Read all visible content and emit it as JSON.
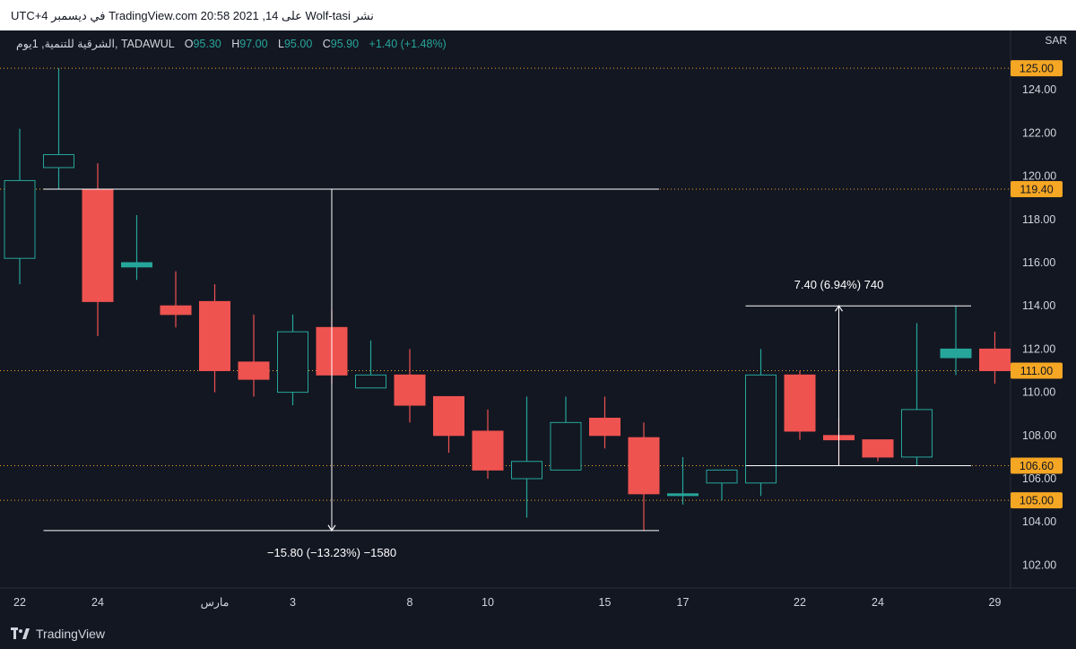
{
  "header": {
    "text": "نشر Wolf-tasi على TradingView.com 20:58 2021 ,14 في ديسمبر UTC+4"
  },
  "legend": {
    "symbol": "الشرقية للتنمية, 1يوم, TADAWUL",
    "o_label": "O",
    "o_value": "95.30",
    "h_label": "H",
    "h_value": "97.00",
    "l_label": "L",
    "l_value": "95.00",
    "c_label": "C",
    "c_value": "95.90",
    "change": "+1.40 (+1.48%)"
  },
  "currency": "SAR",
  "footer": {
    "brand": "TradingView"
  },
  "colors": {
    "up": "#26a69a",
    "down": "#ef5350",
    "background": "#131722",
    "text": "#d1d4dc",
    "price_tag": "#f5a623",
    "measure": "#ffffff"
  },
  "chart_data": {
    "type": "candlestick",
    "ylim": [
      100.5,
      126
    ],
    "yticks": [
      "102.00",
      "104.00",
      "106.00",
      "108.00",
      "110.00",
      "112.00",
      "114.00",
      "116.00",
      "118.00",
      "120.00",
      "122.00",
      "124.00"
    ],
    "xtick_labels": [
      {
        "label": "22",
        "index": 0
      },
      {
        "label": "24",
        "index": 2
      },
      {
        "label": "مارس",
        "index": 5
      },
      {
        "label": "3",
        "index": 7
      },
      {
        "label": "8",
        "index": 10
      },
      {
        "label": "10",
        "index": 12
      },
      {
        "label": "15",
        "index": 15
      },
      {
        "label": "17",
        "index": 17
      },
      {
        "label": "22",
        "index": 20
      },
      {
        "label": "24",
        "index": 22
      },
      {
        "label": "29",
        "index": 25
      }
    ],
    "candles": [
      {
        "o": 116.2,
        "h": 122.2,
        "l": 115.0,
        "c": 119.8
      },
      {
        "o": 120.4,
        "h": 125.0,
        "l": 119.4,
        "c": 121.0
      },
      {
        "o": 119.4,
        "h": 120.6,
        "l": 112.6,
        "c": 114.2
      },
      {
        "o": 115.8,
        "h": 118.2,
        "l": 115.2,
        "c": 116.0
      },
      {
        "o": 114.0,
        "h": 115.6,
        "l": 113.0,
        "c": 113.6
      },
      {
        "o": 114.2,
        "h": 115.0,
        "l": 110.0,
        "c": 111.0
      },
      {
        "o": 111.4,
        "h": 113.6,
        "l": 109.8,
        "c": 110.6
      },
      {
        "o": 110.0,
        "h": 113.6,
        "l": 109.4,
        "c": 112.8
      },
      {
        "o": 113.0,
        "h": 113.8,
        "l": 110.4,
        "c": 110.8
      },
      {
        "o": 110.2,
        "h": 112.4,
        "l": 110.2,
        "c": 110.8
      },
      {
        "o": 110.8,
        "h": 112.0,
        "l": 108.6,
        "c": 109.4
      },
      {
        "o": 109.8,
        "h": 109.8,
        "l": 107.2,
        "c": 108.0
      },
      {
        "o": 108.2,
        "h": 109.2,
        "l": 106.0,
        "c": 106.4
      },
      {
        "o": 106.0,
        "h": 109.8,
        "l": 104.2,
        "c": 106.8
      },
      {
        "o": 106.4,
        "h": 109.8,
        "l": 106.4,
        "c": 108.6
      },
      {
        "o": 108.8,
        "h": 109.8,
        "l": 107.4,
        "c": 108.0
      },
      {
        "o": 107.9,
        "h": 108.6,
        "l": 103.6,
        "c": 105.3
      },
      {
        "o": 105.3,
        "h": 107.0,
        "l": 104.8,
        "c": 105.3
      },
      {
        "o": 105.8,
        "h": 106.4,
        "l": 105.0,
        "c": 106.4
      },
      {
        "o": 105.8,
        "h": 112.0,
        "l": 105.2,
        "c": 110.8
      },
      {
        "o": 110.8,
        "h": 111.0,
        "l": 107.8,
        "c": 108.2
      },
      {
        "o": 108.0,
        "h": 108.8,
        "l": 106.6,
        "c": 107.8
      },
      {
        "o": 107.8,
        "h": 107.8,
        "l": 106.8,
        "c": 107.0
      },
      {
        "o": 107.0,
        "h": 113.2,
        "l": 106.6,
        "c": 109.2
      },
      {
        "o": 111.6,
        "h": 114.0,
        "l": 110.8,
        "c": 112.0
      },
      {
        "o": 112.0,
        "h": 112.8,
        "l": 110.4,
        "c": 111.0
      }
    ],
    "price_tags": [
      {
        "value": 125.0,
        "label": "125.00"
      },
      {
        "value": 119.4,
        "label": "119.40"
      },
      {
        "value": 111.0,
        "label": "111.00"
      },
      {
        "value": 106.6,
        "label": "106.60"
      },
      {
        "value": 105.0,
        "label": "105.00"
      }
    ],
    "measurements": [
      {
        "from_index": 1,
        "to_index": 16,
        "arrow_index": 8,
        "from_price": 119.4,
        "to_price": 103.6,
        "label": "−15.80 (−13.23%) −1580",
        "label_index": 8,
        "label_price": 102.6
      },
      {
        "from_index": 19,
        "to_index": 24,
        "arrow_index": 21,
        "from_price": 106.6,
        "to_price": 114.0,
        "label": "7.40 (6.94%) 740",
        "label_index": 21,
        "label_price": 115.0
      }
    ]
  }
}
